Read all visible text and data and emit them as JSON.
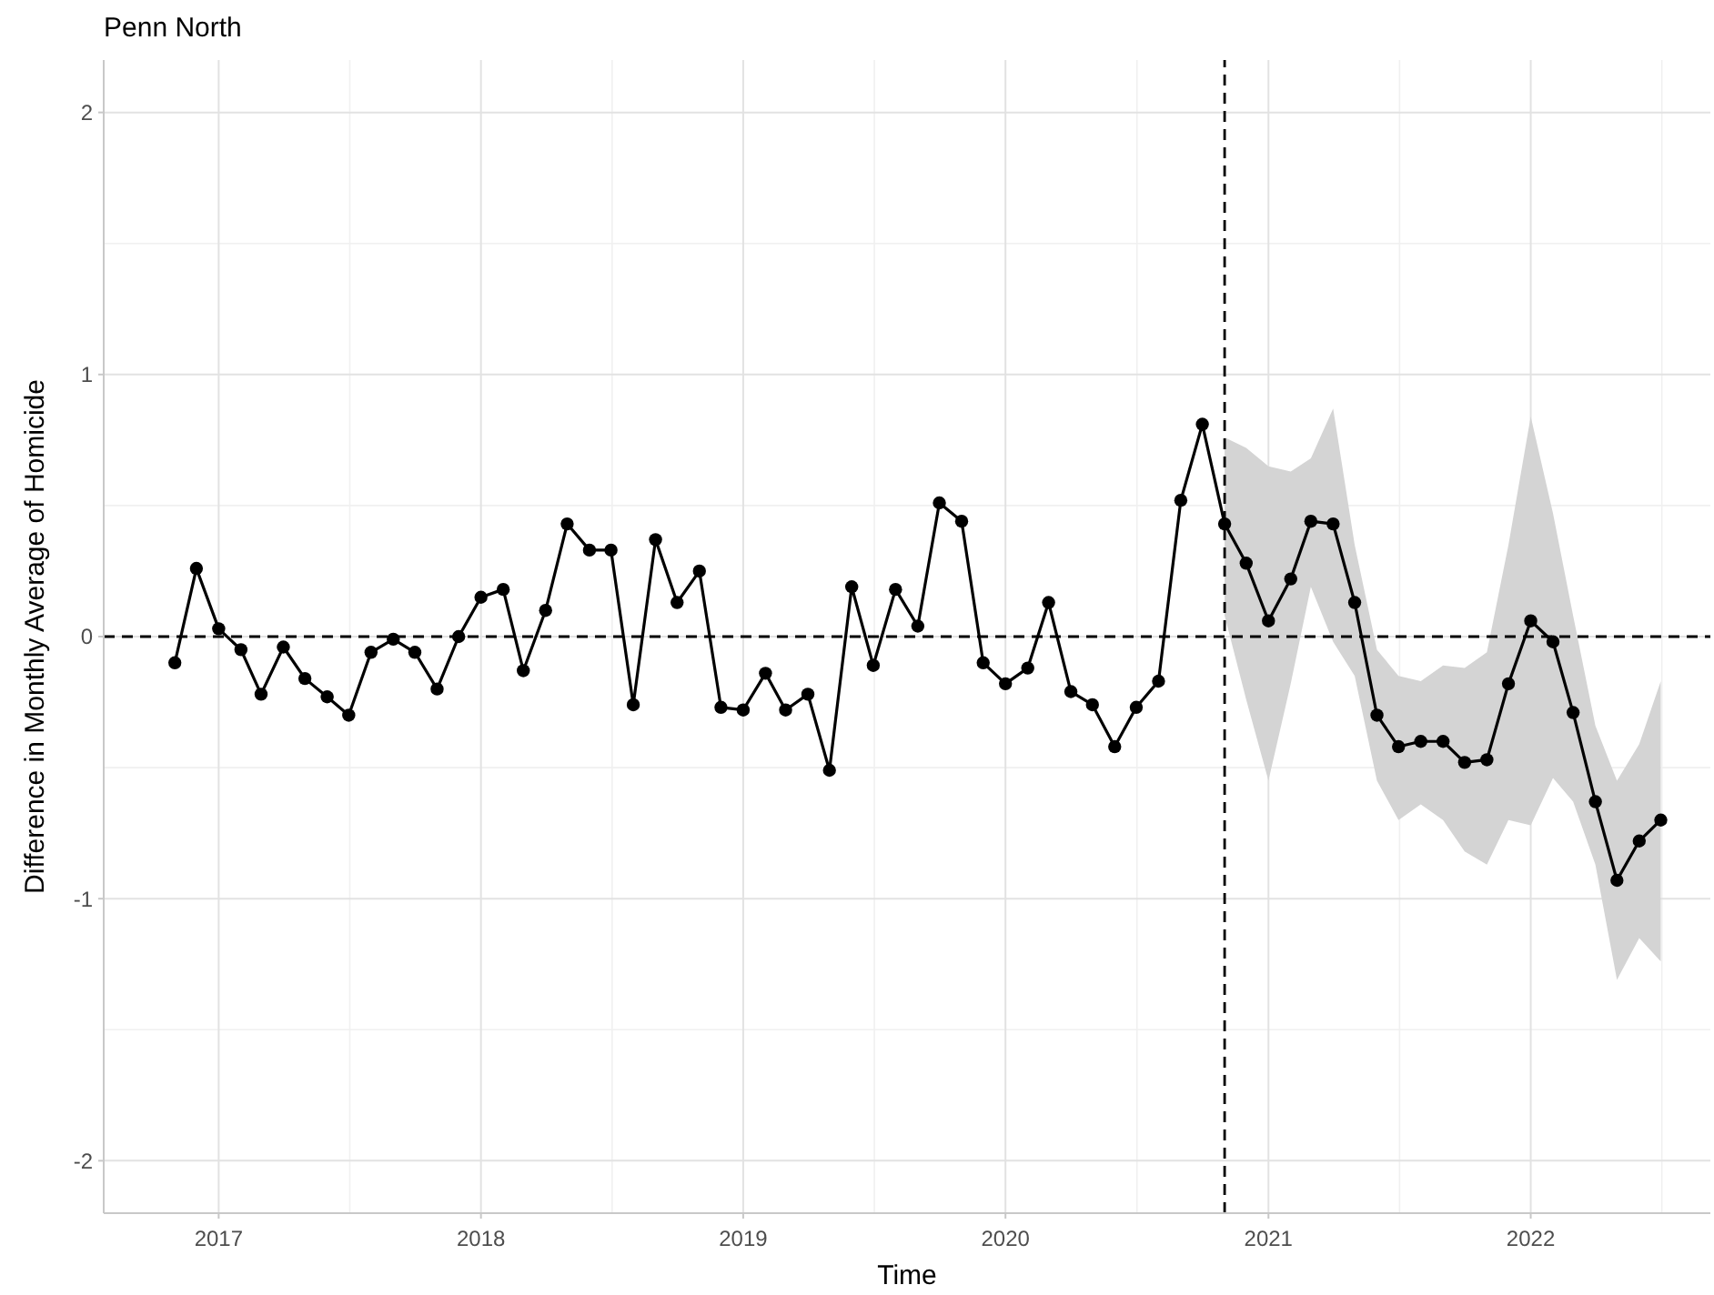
{
  "chart_data": {
    "type": "line",
    "title": "Penn North",
    "xlabel": "Time",
    "ylabel": "Difference in Monthly Average of Homicide",
    "x": [
      "2016-11",
      "2016-12",
      "2017-01",
      "2017-02",
      "2017-03",
      "2017-04",
      "2017-05",
      "2017-06",
      "2017-07",
      "2017-08",
      "2017-09",
      "2017-10",
      "2017-11",
      "2017-12",
      "2018-01",
      "2018-02",
      "2018-03",
      "2018-04",
      "2018-05",
      "2018-06",
      "2018-07",
      "2018-08",
      "2018-09",
      "2018-10",
      "2018-11",
      "2018-12",
      "2019-01",
      "2019-02",
      "2019-03",
      "2019-04",
      "2019-05",
      "2019-06",
      "2019-07",
      "2019-08",
      "2019-09",
      "2019-10",
      "2019-11",
      "2019-12",
      "2020-01",
      "2020-02",
      "2020-03",
      "2020-04",
      "2020-05",
      "2020-06",
      "2020-07",
      "2020-08",
      "2020-09",
      "2020-10",
      "2020-11",
      "2020-12",
      "2021-01",
      "2021-02",
      "2021-03",
      "2021-04",
      "2021-05",
      "2021-06",
      "2021-07",
      "2021-08",
      "2021-09",
      "2021-10",
      "2021-11",
      "2021-12",
      "2022-01",
      "2022-02",
      "2022-03",
      "2022-04",
      "2022-05",
      "2022-06",
      "2022-07"
    ],
    "series": [
      {
        "color": "#000000",
        "values": [
          -0.1,
          0.26,
          0.03,
          -0.05,
          -0.22,
          -0.04,
          -0.16,
          -0.23,
          -0.3,
          -0.06,
          -0.01,
          -0.06,
          -0.2,
          0.0,
          0.15,
          0.18,
          -0.13,
          0.1,
          0.43,
          0.33,
          0.33,
          -0.26,
          0.37,
          0.13,
          0.25,
          -0.27,
          -0.28,
          -0.14,
          -0.28,
          -0.22,
          -0.51,
          0.19,
          -0.11,
          0.18,
          0.04,
          0.51,
          0.44,
          -0.1,
          -0.18,
          -0.12,
          0.13,
          -0.21,
          -0.26,
          -0.42,
          -0.27,
          -0.17,
          0.52,
          0.81,
          0.43,
          0.28,
          0.06,
          0.22,
          0.44,
          0.43,
          0.13,
          -0.3,
          -0.42,
          -0.4,
          -0.4,
          -0.48,
          -0.47,
          -0.18,
          0.06,
          -0.02,
          -0.29,
          -0.63,
          -0.93,
          -0.78,
          -0.7
        ],
        "lower": [
          null,
          null,
          null,
          null,
          null,
          null,
          null,
          null,
          null,
          null,
          null,
          null,
          null,
          null,
          null,
          null,
          null,
          null,
          null,
          null,
          null,
          null,
          null,
          null,
          null,
          null,
          null,
          null,
          null,
          null,
          null,
          null,
          null,
          null,
          null,
          null,
          null,
          null,
          null,
          null,
          null,
          null,
          null,
          null,
          null,
          null,
          null,
          null,
          0.08,
          -0.24,
          -0.55,
          -0.18,
          0.19,
          -0.02,
          -0.15,
          -0.55,
          -0.7,
          -0.64,
          -0.7,
          -0.82,
          -0.87,
          -0.7,
          -0.72,
          -0.54,
          -0.63,
          -0.87,
          -1.31,
          -1.15,
          -1.24
        ],
        "upper": [
          null,
          null,
          null,
          null,
          null,
          null,
          null,
          null,
          null,
          null,
          null,
          null,
          null,
          null,
          null,
          null,
          null,
          null,
          null,
          null,
          null,
          null,
          null,
          null,
          null,
          null,
          null,
          null,
          null,
          null,
          null,
          null,
          null,
          null,
          null,
          null,
          null,
          null,
          null,
          null,
          null,
          null,
          null,
          null,
          null,
          null,
          null,
          null,
          0.76,
          0.72,
          0.65,
          0.63,
          0.68,
          0.87,
          0.35,
          -0.05,
          -0.15,
          -0.17,
          -0.11,
          -0.12,
          -0.06,
          0.35,
          0.84,
          0.47,
          0.08,
          -0.34,
          -0.55,
          -0.41,
          -0.17
        ]
      }
    ],
    "xlim": [
      "2016-07-25",
      "2022-09-08"
    ],
    "xticks": [
      {
        "value": "2017-01",
        "label": "2017"
      },
      {
        "value": "2018-01",
        "label": "2018"
      },
      {
        "value": "2019-01",
        "label": "2019"
      },
      {
        "value": "2020-01",
        "label": "2020"
      },
      {
        "value": "2021-01",
        "label": "2021"
      },
      {
        "value": "2022-01",
        "label": "2022"
      }
    ],
    "ylim": [
      -2.2,
      2.2
    ],
    "yticks": [
      -2,
      -1,
      0,
      1,
      2
    ],
    "grid": true,
    "marker": "circle",
    "line_style": "solid",
    "ref_lines": [
      {
        "axis": "y",
        "value": 0,
        "line_style": "dashed"
      },
      {
        "axis": "x",
        "value": "2020-11",
        "line_style": "dashed"
      }
    ]
  }
}
